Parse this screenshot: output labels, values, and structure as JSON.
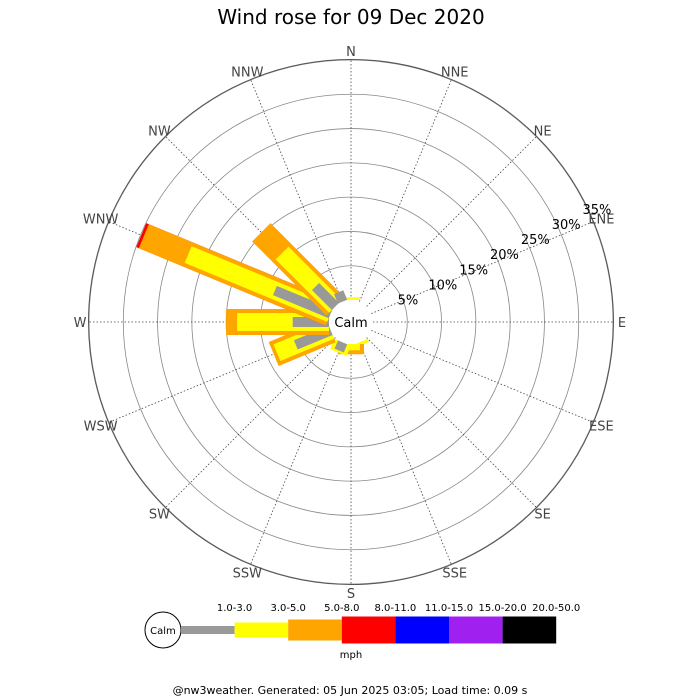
{
  "title": "Wind rose for 09 Dec 2020",
  "footer": "@nw3weather. Generated: 05 Jun 2025 03:05; Load time: 0.09 s",
  "calm_label": "Calm",
  "directions": [
    "N",
    "NNE",
    "NE",
    "ENE",
    "E",
    "ESE",
    "SE",
    "SSE",
    "S",
    "SSW",
    "SW",
    "WSW",
    "W",
    "WNW",
    "NW",
    "NNW"
  ],
  "ring_labels": [
    "5%",
    "10%",
    "15%",
    "20%",
    "25%",
    "30%",
    "35%"
  ],
  "legend": {
    "unit": "mph",
    "bins": [
      {
        "label": "1.0-3.0",
        "color": "#999999"
      },
      {
        "label": "3.0-5.0",
        "color": "#ffff00"
      },
      {
        "label": "5.0-8.0",
        "color": "#ffa500"
      },
      {
        "label": "8.0-11.0",
        "color": "#ff0000"
      },
      {
        "label": "11.0-15.0",
        "color": "#0000ff"
      },
      {
        "label": "15.0-20.0",
        "color": "#a020f0"
      },
      {
        "label": "20.0-50.0",
        "color": "#000000"
      }
    ]
  },
  "chart_data": {
    "type": "wind-rose",
    "title": "Wind rose for 09 Dec 2020",
    "unit": "mph",
    "r_max_percent": 35,
    "ring_step_percent": 5,
    "directions": [
      "N",
      "NNE",
      "NE",
      "ENE",
      "E",
      "ESE",
      "SE",
      "SSE",
      "S",
      "SSW",
      "SW",
      "WSW",
      "W",
      "WNW",
      "NW",
      "NNW"
    ],
    "speed_bins": [
      "1.0-3.0",
      "3.0-5.0",
      "5.0-8.0",
      "8.0-11.0",
      "11.0-15.0",
      "15.0-20.0",
      "20.0-50.0"
    ],
    "cumulative_percent": {
      "N": [
        0,
        0.4,
        0,
        0,
        0,
        0,
        0
      ],
      "NNE": [
        0,
        0,
        0,
        0,
        0,
        0,
        0
      ],
      "NE": [
        0,
        0,
        0,
        0,
        0,
        0,
        0
      ],
      "ENE": [
        0,
        0,
        0,
        0,
        0,
        0,
        0
      ],
      "E": [
        0,
        0,
        0,
        0,
        0,
        0,
        0
      ],
      "ESE": [
        0,
        0,
        0,
        0,
        0,
        0,
        0
      ],
      "SE": [
        0,
        0,
        0,
        0,
        0,
        0,
        0
      ],
      "SSE": [
        0,
        0.5,
        0,
        0,
        0,
        0,
        0
      ],
      "S": [
        0,
        0.9,
        1.5,
        0,
        0,
        0,
        0
      ],
      "SSW": [
        1.3,
        1.6,
        0,
        0,
        0,
        0,
        0
      ],
      "SW": [
        0,
        0,
        0,
        0,
        0,
        0,
        0
      ],
      "WSW": [
        5.5,
        8.5,
        9.0,
        0,
        0,
        0,
        0
      ],
      "W": [
        5.3,
        13.4,
        15.0,
        0,
        0,
        0,
        0
      ],
      "WNW": [
        8.8,
        22.5,
        29.5,
        29.9,
        0,
        0,
        0
      ],
      "NW": [
        4.1,
        11.0,
        15.3,
        0,
        0,
        0,
        0
      ],
      "NNW": [
        1.5,
        0,
        0,
        0,
        0,
        0,
        0
      ]
    }
  }
}
